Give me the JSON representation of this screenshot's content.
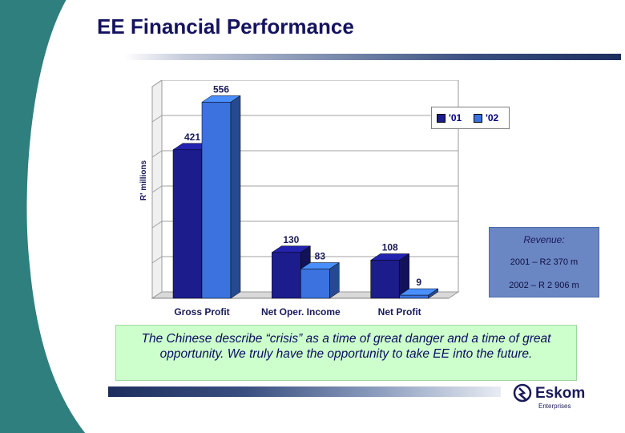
{
  "slide": {
    "title": "EE Financial Performance"
  },
  "chart_data": {
    "type": "bar",
    "ylabel": "R' millions",
    "categories": [
      "Gross Profit",
      "Net Oper. Income",
      "Net Profit"
    ],
    "series": [
      {
        "name": "'01",
        "values": [
          421,
          130,
          108
        ],
        "color": "#1c1c8c"
      },
      {
        "name": "'02",
        "values": [
          556,
          83,
          9
        ],
        "color": "#3b72e0"
      }
    ],
    "data_labels": [
      [
        "421",
        "130",
        "108"
      ],
      [
        "556",
        "83",
        "9"
      ]
    ],
    "ylim": [
      0,
      600
    ],
    "grid": true,
    "legend": "top-right"
  },
  "revenue_box": {
    "heading": "Revenue:",
    "line_2001": "2001 – R2 370 m",
    "line_2002": "2002 – R 2 906 m"
  },
  "quote": {
    "text": "The Chinese describe “crisis” as a time of great danger and a time of great opportunity. We truly have the opportunity to take EE into the future."
  },
  "logo": {
    "name": "Eskom",
    "sub": "Enterprises",
    "icon": "eskom-logo-icon"
  },
  "colors": {
    "title": "#15135f",
    "swoosh": "#2f7f7e",
    "series_01": "#1c1c8c",
    "series_02": "#3b72e0",
    "revenue_bg": "#6a86c3",
    "quote_bg": "#ccffcc"
  }
}
